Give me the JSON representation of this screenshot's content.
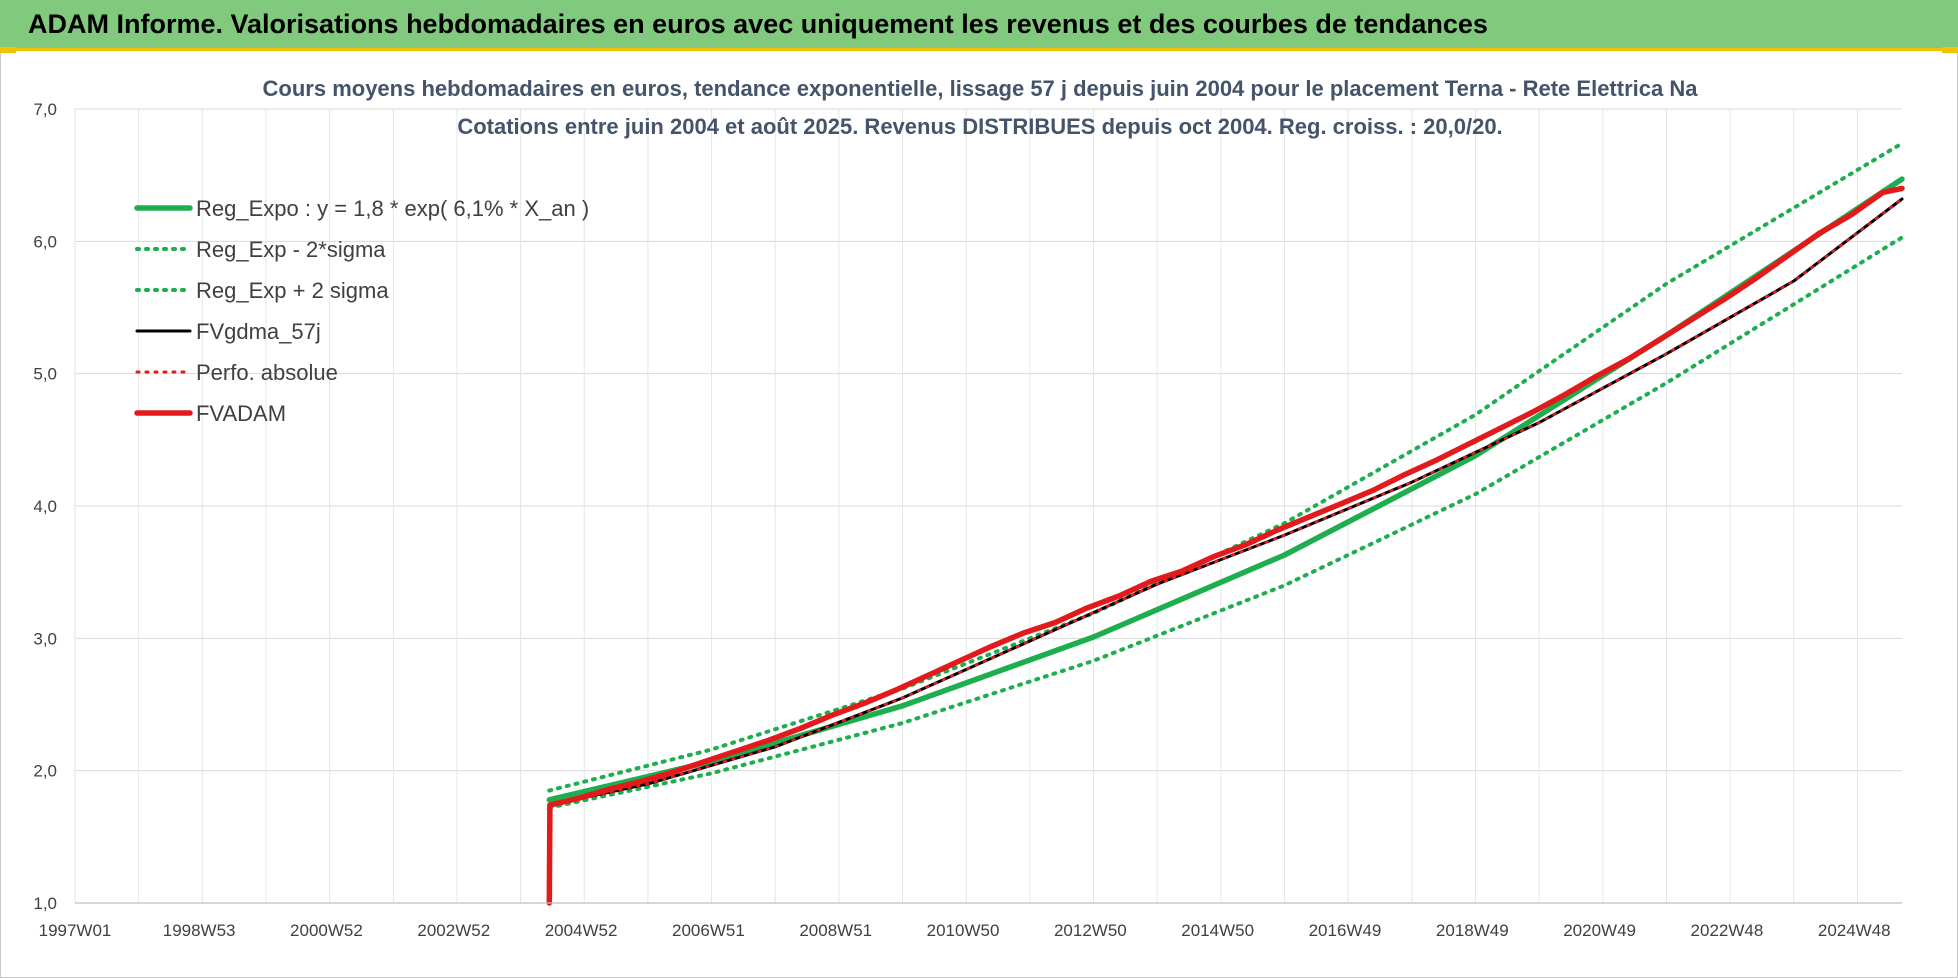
{
  "header": {
    "title": "ADAM Informe. Valorisations hebdomadaires en euros avec uniquement les revenus et des courbes de tendances"
  },
  "colors": {
    "header_bg": "#80c97d",
    "accent": "#f2c200",
    "reg_green": "#1fae4f",
    "fvgdma": "#000000",
    "fvadam": "#e31a1c"
  },
  "chart_data": {
    "type": "line",
    "title_lines": [
      "Cours moyens hebdomadaires en euros, tendance exponentielle, lissage 57 j depuis juin 2004 pour le placement Terna - Rete Elettrica Na",
      "Cotations entre juin 2004 et août 2025. Revenus DISTRIBUES depuis oct 2004. Reg. croiss. : 20,0/20."
    ],
    "x_axis": {
      "ticks": [
        "1997W01",
        "1998W53",
        "2000W52",
        "2002W52",
        "2004W52",
        "2006W51",
        "2008W51",
        "2010W50",
        "2012W50",
        "2014W50",
        "2016W49",
        "2018W49",
        "2020W49",
        "2022W48",
        "2024W48"
      ],
      "range_years": [
        1997.0,
        2025.7
      ]
    },
    "y_axis": {
      "ticks": [
        "1,0",
        "2,0",
        "3,0",
        "4,0",
        "5,0",
        "6,0",
        "7,0"
      ],
      "min": 1.0,
      "max": 7.0
    },
    "grid": true,
    "legend_position": "top-left",
    "series": [
      {
        "name": "Reg_Expo : y = 1,8 * exp( 6,1% *  X_an )",
        "style": "solid-thick",
        "color": "#1fae4f",
        "x": [
          2004.45,
          2007,
          2010,
          2013,
          2016,
          2019,
          2022,
          2025.7
        ],
        "y": [
          1.78,
          2.07,
          2.49,
          3.01,
          3.63,
          4.38,
          5.29,
          6.47
        ]
      },
      {
        "name": "Reg_Exp - 2*sigma",
        "style": "dotted",
        "color": "#1fae4f",
        "x": [
          2004.45,
          2007,
          2010,
          2013,
          2016,
          2019,
          2022,
          2025.7
        ],
        "y": [
          1.72,
          1.98,
          2.36,
          2.83,
          3.4,
          4.09,
          4.93,
          6.03
        ]
      },
      {
        "name": "Reg_Exp + 2 sigma",
        "style": "dotted",
        "color": "#1fae4f",
        "x": [
          2004.45,
          2007,
          2010,
          2013,
          2016,
          2019,
          2022,
          2025.7
        ],
        "y": [
          1.85,
          2.16,
          2.62,
          3.19,
          3.87,
          4.69,
          5.68,
          6.74
        ]
      },
      {
        "name": "FVgdma_57j",
        "style": "solid",
        "color": "#000000",
        "x": [
          2004.45,
          2006,
          2008,
          2010,
          2012,
          2014,
          2016,
          2018,
          2020,
          2022,
          2024,
          2025.7
        ],
        "y": [
          1.74,
          1.9,
          2.18,
          2.55,
          2.98,
          3.41,
          3.78,
          4.18,
          4.63,
          5.15,
          5.7,
          6.32
        ]
      },
      {
        "name": "Perfo. absolue",
        "style": "dotted",
        "color": "#e31a1c",
        "x": [
          2004.45,
          2006,
          2008,
          2010,
          2012,
          2014,
          2016,
          2018,
          2020,
          2022,
          2024,
          2025.7
        ],
        "y": [
          1.74,
          1.9,
          2.18,
          2.55,
          2.98,
          3.41,
          3.78,
          4.18,
          4.63,
          5.15,
          5.7,
          6.32
        ]
      },
      {
        "name": "FVADAM",
        "style": "solid-thick",
        "color": "#e31a1c",
        "x": [
          2004.45,
          2004.46,
          2004.9,
          2005.4,
          2005.9,
          2006.4,
          2006.9,
          2007.4,
          2007.9,
          2008.4,
          2008.9,
          2009.4,
          2009.9,
          2010.4,
          2010.9,
          2011.4,
          2011.9,
          2012.4,
          2012.9,
          2013.4,
          2013.9,
          2014.4,
          2014.9,
          2015.4,
          2015.9,
          2016.4,
          2016.9,
          2017.4,
          2017.9,
          2018.4,
          2018.9,
          2019.4,
          2019.9,
          2020.4,
          2020.9,
          2021.4,
          2021.9,
          2022.4,
          2022.9,
          2023.4,
          2023.9,
          2024.4,
          2024.9,
          2025.4,
          2025.7
        ],
        "y": [
          1.0,
          1.74,
          1.79,
          1.86,
          1.92,
          1.99,
          2.07,
          2.15,
          2.23,
          2.32,
          2.42,
          2.51,
          2.61,
          2.72,
          2.83,
          2.94,
          3.04,
          3.12,
          3.23,
          3.32,
          3.43,
          3.51,
          3.62,
          3.71,
          3.82,
          3.92,
          4.02,
          4.12,
          4.24,
          4.35,
          4.47,
          4.59,
          4.71,
          4.84,
          4.98,
          5.11,
          5.26,
          5.41,
          5.56,
          5.72,
          5.89,
          6.06,
          6.2,
          6.37,
          6.4
        ]
      }
    ]
  }
}
